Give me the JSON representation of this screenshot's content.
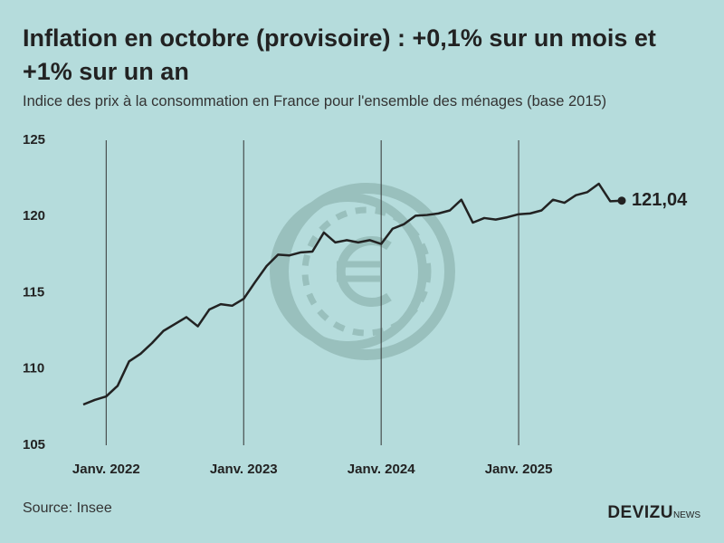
{
  "chart_data": {
    "type": "line",
    "title": "Inflation en octobre (provisoire) : +0,1% sur un mois et +1% sur un an",
    "subtitle": "Indice des prix à la consommation en France pour l'ensemble des ménages (base 2015)",
    "source": "Source: Insee",
    "brand": "DEVIZU",
    "brand_suffix": "NEWS",
    "categories": [
      null,
      null,
      "Janv. 2022",
      null,
      null,
      null,
      null,
      null,
      null,
      null,
      null,
      null,
      null,
      null,
      "Janv. 2023",
      null,
      null,
      null,
      null,
      null,
      null,
      null,
      null,
      null,
      null,
      null,
      "Janv. 2024",
      null,
      null,
      null,
      null,
      null,
      null,
      null,
      null,
      null,
      null,
      null,
      "Janv. 2025",
      null,
      null,
      null,
      null,
      null,
      null,
      null,
      null,
      null
    ],
    "values": [
      107.67,
      107.97,
      108.2,
      108.9,
      110.5,
      111.0,
      111.7,
      112.5,
      112.95,
      113.4,
      112.8,
      113.9,
      114.25,
      114.15,
      114.6,
      115.7,
      116.75,
      117.5,
      117.45,
      117.65,
      117.7,
      118.95,
      118.3,
      118.45,
      118.3,
      118.45,
      118.2,
      119.2,
      119.5,
      120.05,
      120.1,
      120.2,
      120.4,
      121.1,
      119.6,
      119.9,
      119.8,
      119.95,
      120.15,
      120.2,
      120.4,
      121.1,
      120.9,
      121.4,
      121.6,
      122.15,
      121.0,
      121.04
    ],
    "value_labels": [
      null,
      null,
      null,
      null,
      null,
      null,
      null,
      null,
      null,
      null,
      null,
      null,
      null,
      null,
      null,
      null,
      null,
      null,
      null,
      null,
      null,
      null,
      null,
      null,
      null,
      null,
      null,
      null,
      null,
      null,
      null,
      null,
      null,
      null,
      null,
      null,
      null,
      null,
      null,
      null,
      null,
      null,
      null,
      null,
      null,
      null,
      null,
      "121,04"
    ],
    "color": "#222222",
    "ylim": [
      105,
      125
    ],
    "yticks": [
      105,
      110,
      115,
      120,
      125
    ],
    "grid": true
  }
}
